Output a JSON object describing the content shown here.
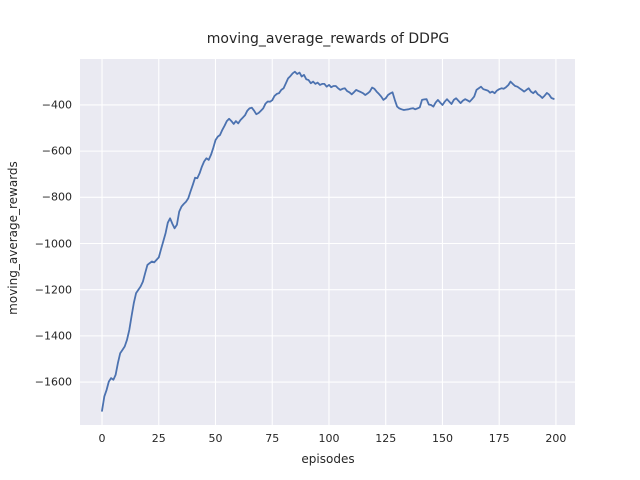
{
  "chart_data": {
    "type": "line",
    "title": "moving_average_rewards of DDPG",
    "xlabel": "episodes",
    "ylabel": "moving_average_rewards",
    "x_ticks": [
      0,
      25,
      50,
      75,
      100,
      125,
      150,
      175,
      200
    ],
    "y_ticks": [
      -400,
      -600,
      -800,
      -1000,
      -1200,
      -1400,
      -1600
    ],
    "xlim": [
      -9.7,
      208.4
    ],
    "ylim": [
      -1786,
      -201
    ],
    "grid": true,
    "legend_position": "none",
    "plot_bg": "#eaeaf2",
    "grid_color": "#ffffff",
    "line_color": "#4c72b0",
    "text_color": "#262626",
    "series": [
      {
        "name": "moving_average_rewards",
        "x_start": 0,
        "values": [
          -1725,
          -1663,
          -1634,
          -1598,
          -1583,
          -1590,
          -1569,
          -1518,
          -1475,
          -1461,
          -1446,
          -1417,
          -1374,
          -1316,
          -1258,
          -1215,
          -1201,
          -1186,
          -1165,
          -1129,
          -1093,
          -1085,
          -1078,
          -1082,
          -1071,
          -1060,
          -1025,
          -990,
          -955,
          -910,
          -891,
          -915,
          -934,
          -919,
          -862,
          -840,
          -829,
          -819,
          -804,
          -775,
          -746,
          -715,
          -717,
          -696,
          -667,
          -645,
          -631,
          -638,
          -616,
          -587,
          -552,
          -537,
          -530,
          -508,
          -490,
          -470,
          -460,
          -470,
          -482,
          -470,
          -480,
          -465,
          -455,
          -445,
          -425,
          -415,
          -412,
          -425,
          -440,
          -435,
          -425,
          -415,
          -395,
          -385,
          -386,
          -380,
          -361,
          -352,
          -349,
          -335,
          -328,
          -306,
          -285,
          -275,
          -263,
          -256,
          -266,
          -260,
          -277,
          -270,
          -289,
          -292,
          -306,
          -299,
          -309,
          -303,
          -313,
          -309,
          -309,
          -321,
          -313,
          -323,
          -318,
          -318,
          -328,
          -335,
          -330,
          -328,
          -340,
          -345,
          -354,
          -345,
          -335,
          -340,
          -344,
          -349,
          -357,
          -350,
          -342,
          -325,
          -330,
          -342,
          -352,
          -364,
          -378,
          -371,
          -357,
          -350,
          -345,
          -378,
          -407,
          -415,
          -419,
          -422,
          -420,
          -419,
          -416,
          -414,
          -419,
          -415,
          -410,
          -378,
          -376,
          -375,
          -398,
          -400,
          -407,
          -390,
          -378,
          -390,
          -400,
          -386,
          -375,
          -386,
          -396,
          -378,
          -371,
          -381,
          -392,
          -381,
          -375,
          -380,
          -386,
          -375,
          -364,
          -335,
          -328,
          -321,
          -332,
          -335,
          -338,
          -347,
          -342,
          -349,
          -338,
          -332,
          -328,
          -330,
          -323,
          -314,
          -299,
          -309,
          -318,
          -321,
          -328,
          -335,
          -342,
          -335,
          -328,
          -342,
          -349,
          -340,
          -354,
          -360,
          -370,
          -360,
          -348,
          -355,
          -370,
          -374
        ]
      }
    ]
  }
}
